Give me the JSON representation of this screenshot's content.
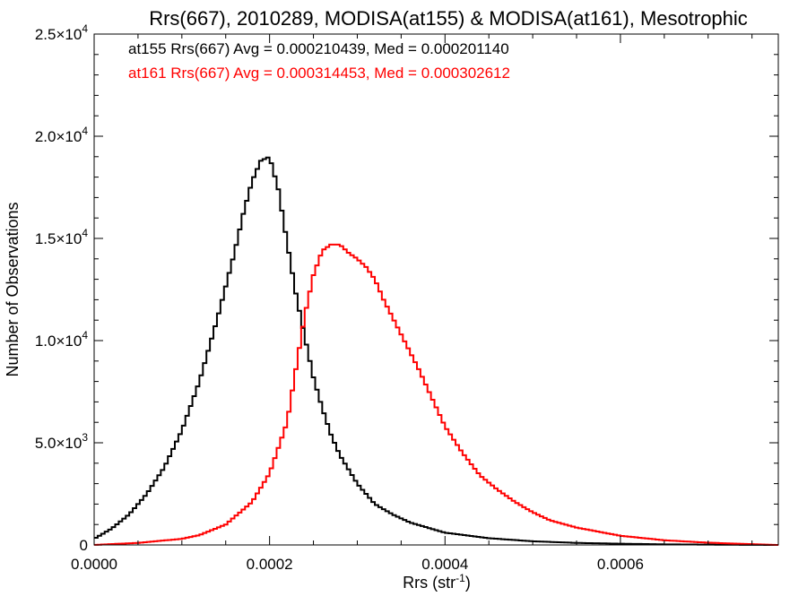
{
  "chart_data": {
    "type": "line",
    "title": "Rrs(667), 2010289, MODISA(at155) & MODISA(at161), Mesotrophic",
    "xlabel": "Rrs (str",
    "xlabel_sup": "-1",
    "xlabel_suffix": ")",
    "ylabel": "Number of Observations",
    "xlim": [
      0,
      0.00078
    ],
    "ylim": [
      0,
      25000
    ],
    "x_ticks": [
      {
        "value": 0.0,
        "label": "0.0000"
      },
      {
        "value": 0.0002,
        "label": "0.0002"
      },
      {
        "value": 0.0004,
        "label": "0.0004"
      },
      {
        "value": 0.0006,
        "label": "0.0006"
      }
    ],
    "y_ticks": [
      {
        "value": 0,
        "mantissa": "0",
        "exp": ""
      },
      {
        "value": 5000,
        "mantissa": "5.0×10",
        "exp": "3"
      },
      {
        "value": 10000,
        "mantissa": "1.0×10",
        "exp": "4"
      },
      {
        "value": 15000,
        "mantissa": "1.5×10",
        "exp": "4"
      },
      {
        "value": 20000,
        "mantissa": "2.0×10",
        "exp": "4"
      },
      {
        "value": 25000,
        "mantissa": "2.5×10",
        "exp": "4"
      }
    ],
    "annotations": [
      {
        "text": "at155 Rrs(667) Avg = 0.000210439, Med = 0.000201140",
        "color": "#000000"
      },
      {
        "text": "at161 Rrs(667) Avg = 0.000314453, Med = 0.000302612",
        "color": "#ff0000"
      }
    ],
    "series": [
      {
        "color": "#000000",
        "style": "step",
        "x": [
          0.0,
          2e-05,
          4e-05,
          6e-05,
          8e-05,
          0.0001,
          0.00012,
          0.00014,
          0.00016,
          0.00017,
          0.00018,
          0.00019,
          0.0002,
          0.00021,
          0.00022,
          0.00023,
          0.00024,
          0.00025,
          0.00026,
          0.00027,
          0.00028,
          0.0003,
          0.00032,
          0.00034,
          0.00036,
          0.0004,
          0.00045,
          0.0005,
          0.00055,
          0.0006,
          0.00065,
          0.0007,
          0.00078
        ],
        "y": [
          300,
          800,
          1500,
          2500,
          3800,
          5600,
          8000,
          11000,
          14300,
          16200,
          17800,
          18800,
          19000,
          17400,
          14800,
          12300,
          10200,
          8200,
          6700,
          5400,
          4400,
          3000,
          2000,
          1500,
          1100,
          600,
          330,
          180,
          100,
          60,
          30,
          15,
          0
        ]
      },
      {
        "color": "#ff0000",
        "style": "step",
        "x": [
          0.0,
          5e-05,
          0.0001,
          0.00012,
          0.00015,
          0.00018,
          0.0002,
          0.00022,
          0.00023,
          0.00024,
          0.00025,
          0.00026,
          0.00027,
          0.00028,
          0.00029,
          0.0003,
          0.00031,
          0.00032,
          0.00033,
          0.00035,
          0.00037,
          0.0004,
          0.00042,
          0.00044,
          0.00046,
          0.00048,
          0.0005,
          0.00052,
          0.00055,
          0.0006,
          0.00065,
          0.0007,
          0.00075,
          0.00078
        ],
        "y": [
          0,
          100,
          300,
          480,
          1000,
          2100,
          3500,
          6000,
          8600,
          11200,
          13200,
          14400,
          14700,
          14700,
          14300,
          14000,
          13600,
          13000,
          12000,
          10300,
          8600,
          5800,
          4500,
          3400,
          2700,
          2100,
          1600,
          1200,
          850,
          450,
          230,
          110,
          40,
          0
        ]
      }
    ]
  }
}
